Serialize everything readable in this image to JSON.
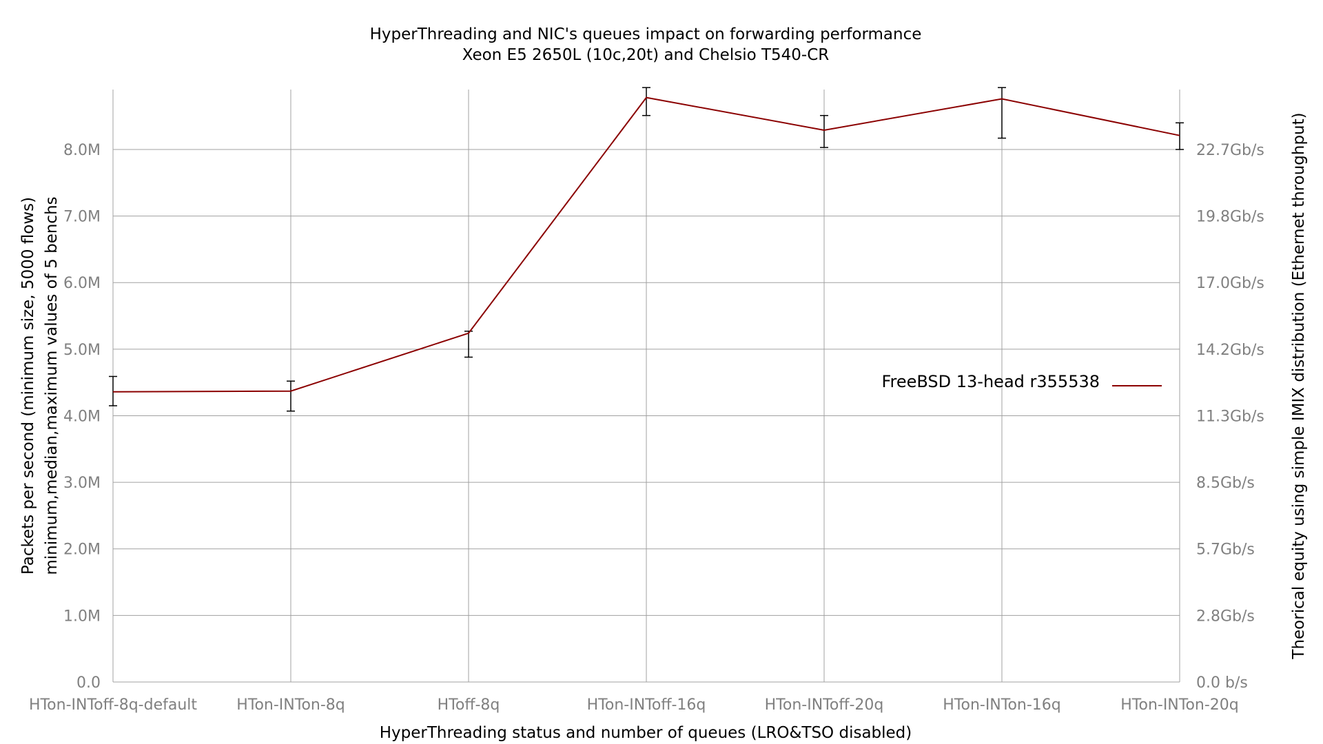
{
  "chart_data": {
    "type": "line",
    "title": "HyperThreading and NIC's queues impact on forwarding performance",
    "subtitle": "Xeon E5 2650L (10c,20t) and Chelsio T540-CR",
    "xlabel": "HyperThreading status and number of queues (LRO&TSO disabled)",
    "ylabel": "Packets per second (minimum size, 5000 flows)",
    "ylabel2": "minimum,median,maximum values of 5 benchs",
    "y2label": "Theorical equity using simple IMIX distribution (Ethernet throughput)",
    "categories": [
      "HTon-INToff-8q-default",
      "HTon-INTon-8q",
      "HToff-8q",
      "HTon-INToff-16q",
      "HTon-INToff-20q",
      "HTon-INTon-16q",
      "HTon-INTon-20q"
    ],
    "ylim": [
      0,
      8900000
    ],
    "yticks": [
      0,
      1000000,
      2000000,
      3000000,
      4000000,
      5000000,
      6000000,
      7000000,
      8000000
    ],
    "ytick_labels": [
      "0.0",
      "1.0M",
      "2.0M",
      "3.0M",
      "4.0M",
      "5.0M",
      "6.0M",
      "7.0M",
      "8.0M"
    ],
    "y2tick_labels": [
      "0.0 b/s",
      "2.8Gb/s",
      "5.7Gb/s",
      "8.5Gb/s",
      "11.3Gb/s",
      "14.2Gb/s",
      "17.0Gb/s",
      "19.8Gb/s",
      "22.7Gb/s"
    ],
    "grid": true,
    "legend_position": "right-middle",
    "series": [
      {
        "name": "FreeBSD 13-head r355538",
        "color": "#8b0000",
        "values": [
          4360000,
          4370000,
          5240000,
          8780000,
          8290000,
          8760000,
          8210000
        ],
        "min": [
          4150000,
          4070000,
          4880000,
          8510000,
          8030000,
          8170000,
          8000000
        ],
        "max": [
          4590000,
          4520000,
          5270000,
          8930000,
          8510000,
          8930000,
          8400000
        ]
      }
    ]
  }
}
